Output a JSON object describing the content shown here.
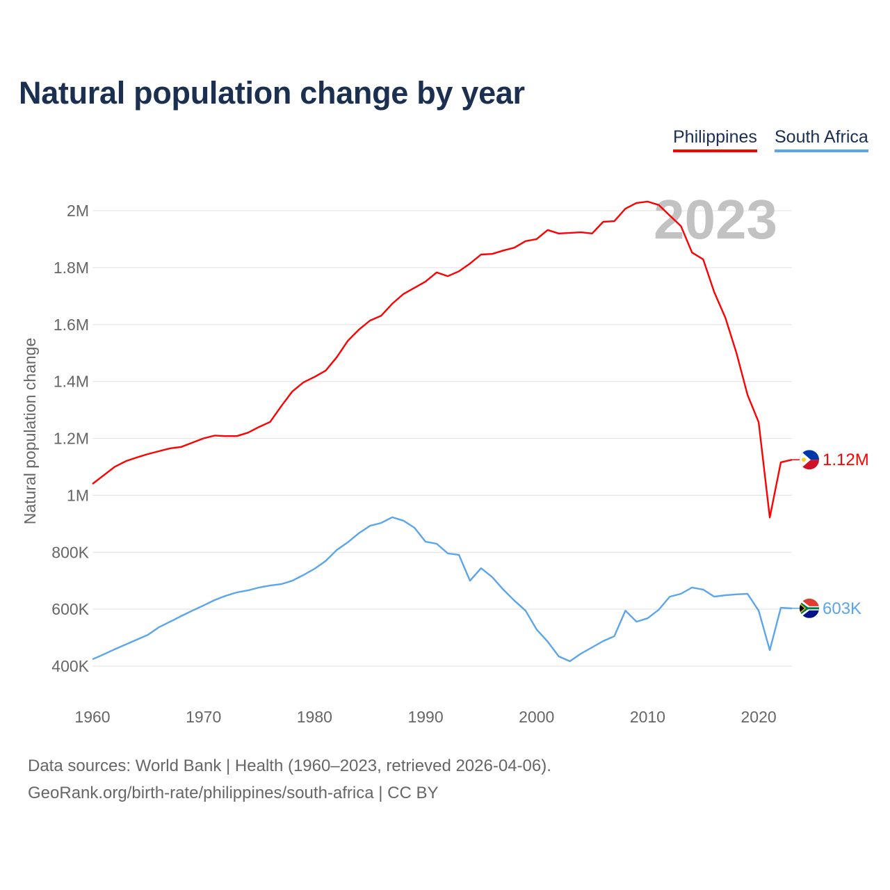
{
  "chart_data": {
    "type": "line",
    "title": "Natural population change by year",
    "xlabel": "",
    "ylabel": "Natural population change",
    "xlim": [
      1960,
      2023
    ],
    "ylim": [
      300000,
      2050000
    ],
    "grid": true,
    "legend_position": "top-right",
    "year_watermark": "2023",
    "x_ticks": [
      1960,
      1970,
      1980,
      1990,
      2000,
      2010,
      2020
    ],
    "x_tick_labels": [
      "1960",
      "1970",
      "1980",
      "1990",
      "2000",
      "2010",
      "2020"
    ],
    "y_ticks": [
      400000,
      600000,
      800000,
      1000000,
      1200000,
      1400000,
      1600000,
      1800000,
      2000000
    ],
    "y_tick_labels": [
      "400K",
      "600K",
      "800K",
      "1M",
      "1.2M",
      "1.4M",
      "1.6M",
      "1.8M",
      "2M"
    ],
    "x": [
      1960,
      1961,
      1962,
      1963,
      1964,
      1965,
      1966,
      1967,
      1968,
      1969,
      1970,
      1971,
      1972,
      1973,
      1974,
      1975,
      1976,
      1977,
      1978,
      1979,
      1980,
      1981,
      1982,
      1983,
      1984,
      1985,
      1986,
      1987,
      1988,
      1989,
      1990,
      1991,
      1992,
      1993,
      1994,
      1995,
      1996,
      1997,
      1998,
      1999,
      2000,
      2001,
      2002,
      2003,
      2004,
      2005,
      2006,
      2007,
      2008,
      2009,
      2010,
      2011,
      2012,
      2013,
      2014,
      2015,
      2016,
      2017,
      2018,
      2019,
      2020,
      2021,
      2022,
      2023
    ],
    "series": [
      {
        "name": "Philippines",
        "color": "#ff0000",
        "end_label": "1.12M",
        "flag": "philippines-flag",
        "values": [
          1040000,
          1070000,
          1100000,
          1120000,
          1133000,
          1145000,
          1155000,
          1165000,
          1170000,
          1185000,
          1200000,
          1210000,
          1208000,
          1208000,
          1220000,
          1240000,
          1258000,
          1313000,
          1365000,
          1397000,
          1416000,
          1438000,
          1485000,
          1543000,
          1582000,
          1614000,
          1631000,
          1673000,
          1707000,
          1729000,
          1751000,
          1783000,
          1770000,
          1787000,
          1814000,
          1846000,
          1848000,
          1860000,
          1870000,
          1893000,
          1900000,
          1932000,
          1920000,
          1922000,
          1924000,
          1920000,
          1961000,
          1963000,
          2007000,
          2027000,
          2032000,
          2020000,
          1983000,
          1946000,
          1853000,
          1829000,
          1714000,
          1624000,
          1500000,
          1353000,
          1257000,
          922000,
          1116000,
          1125000
        ]
      },
      {
        "name": "South Africa",
        "color": "#5aa5ec",
        "end_label": "603K",
        "flag": "south-africa-flag",
        "values": [
          424000,
          441000,
          459000,
          476000,
          493000,
          510000,
          537000,
          556000,
          576000,
          595000,
          613000,
          632000,
          647000,
          659000,
          666000,
          676000,
          683000,
          688000,
          700000,
          720000,
          742000,
          769000,
          808000,
          835000,
          867000,
          893000,
          903000,
          923000,
          911000,
          886000,
          837000,
          830000,
          796000,
          791000,
          700000,
          744000,
          713000,
          669000,
          630000,
          595000,
          529000,
          486000,
          434000,
          417000,
          444000,
          466000,
          488000,
          505000,
          595000,
          556000,
          568000,
          598000,
          644000,
          654000,
          676000,
          669000,
          644000,
          649000,
          652000,
          654000,
          595000,
          456000,
          605000,
          603000
        ]
      }
    ]
  },
  "footer": {
    "sources": "Data sources: World Bank | Health (1960–2023, retrieved 2026-04-06).",
    "credit": "GeoRank.org/birth-rate/philippines/south-africa | CC BY"
  }
}
